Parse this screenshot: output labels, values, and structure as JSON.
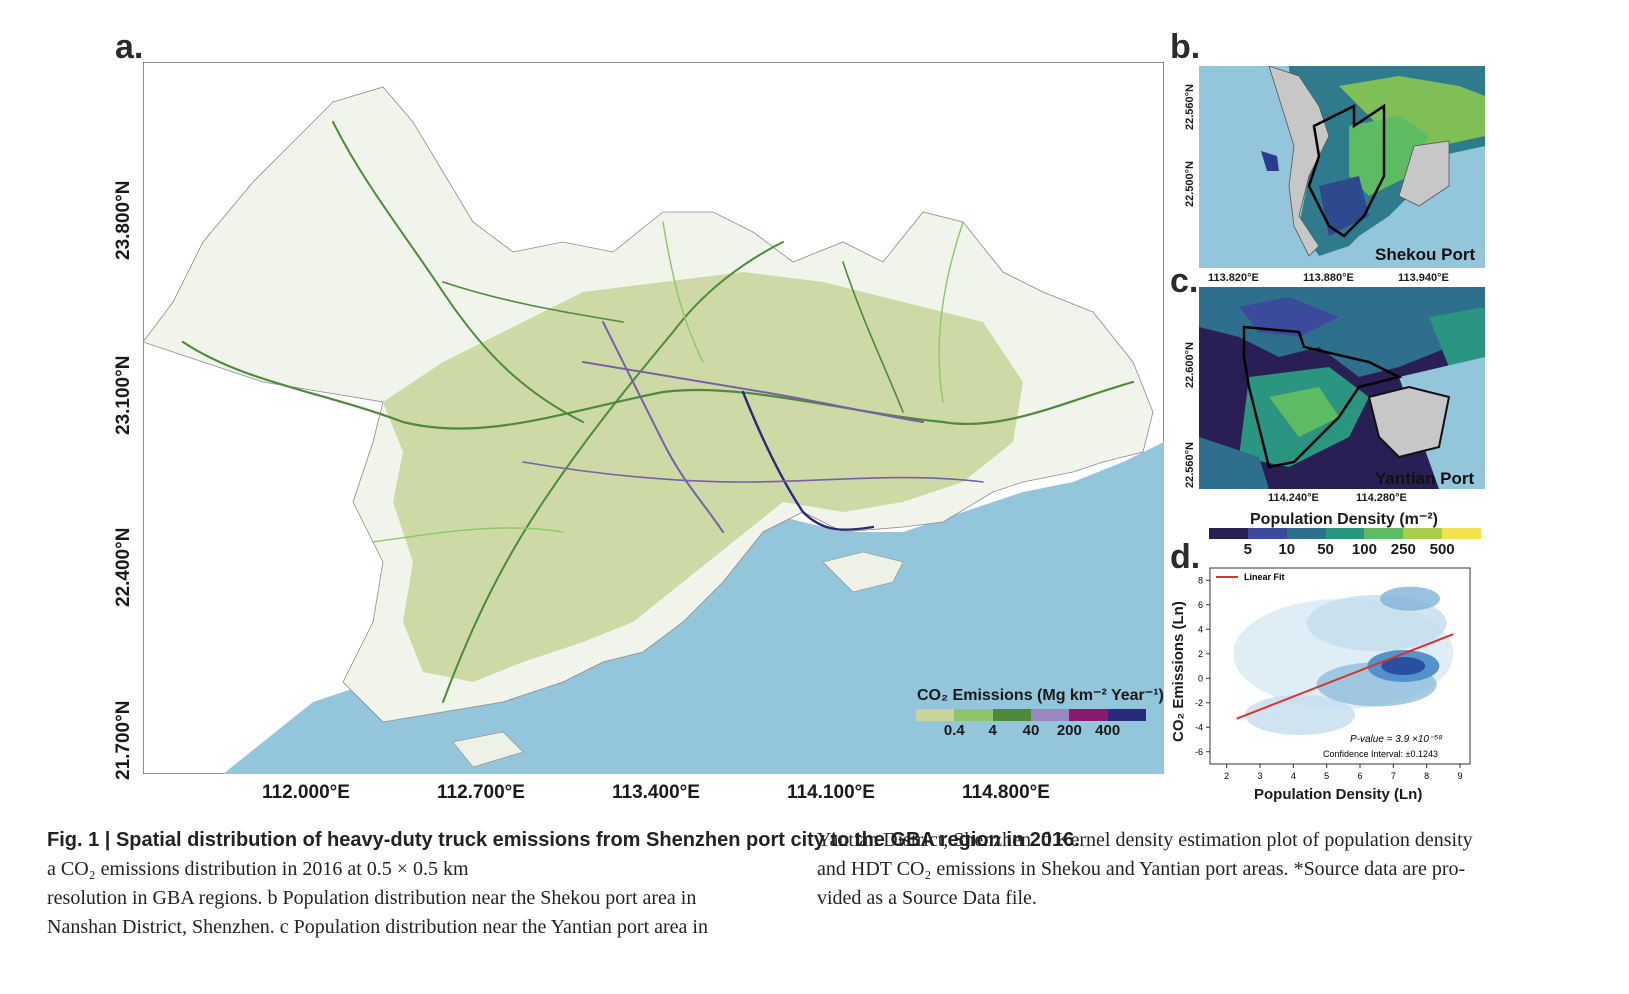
{
  "panels": {
    "a": {
      "letter": "a.",
      "x_ticks": [
        "112.000°E",
        "112.700°E",
        "113.400°E",
        "114.100°E",
        "114.800°E"
      ],
      "y_ticks": [
        "23.800°N",
        "23.100°N",
        "22.400°N",
        "21.700°N"
      ],
      "legend": {
        "title": "CO₂ Emissions (Mg km⁻² Year⁻¹)",
        "colors": [
          "#c8d49a",
          "#8fc46a",
          "#4f8a3a",
          "#9a86c0",
          "#8a1a6e",
          "#2a2a7a"
        ],
        "ticks": [
          "0.4",
          "4",
          "40",
          "200",
          "400"
        ]
      }
    },
    "b": {
      "letter": "b.",
      "name": "Shekou Port",
      "x_ticks": [
        "113.820°E",
        "113.880°E",
        "113.940°E"
      ],
      "y_ticks": [
        "22.560°N",
        "22.500°N"
      ]
    },
    "c": {
      "letter": "c.",
      "name": "Yantian Port",
      "x_ticks": [
        "114.240°E",
        "114.280°E"
      ],
      "y_ticks": [
        "22.600°N",
        "22.560°N"
      ]
    },
    "pop_legend": {
      "title": "Population Density (m⁻²)",
      "colors": [
        "#2a1f55",
        "#3b4a9a",
        "#2e6f8e",
        "#2a9580",
        "#5dbb63",
        "#a9cf4a",
        "#f2e24a"
      ],
      "ticks": [
        "5",
        "10",
        "50",
        "100",
        "250",
        "500"
      ]
    },
    "d": {
      "letter": "d."
    }
  },
  "chart_data": {
    "type": "scatter",
    "legend": [
      "Linear Fit"
    ],
    "xlabel": "Population Density (Ln)",
    "ylabel": "CO₂ Emissions (Ln)",
    "xlim": [
      1.5,
      9.3
    ],
    "ylim": [
      -7,
      9
    ],
    "x_ticks": [
      "2",
      "3",
      "4",
      "5",
      "6",
      "7",
      "8",
      "9"
    ],
    "y_ticks": [
      "8",
      "6",
      "4",
      "2",
      "0",
      "-2",
      "-4",
      "-6"
    ],
    "fit_line": {
      "x": [
        2.3,
        8.8
      ],
      "y": [
        -3.3,
        3.6
      ],
      "color": "#d9342b"
    },
    "density_peak": {
      "x": 7.3,
      "y": 1.0
    },
    "annotations": [
      "P-value = 3.9 ×10⁻⁵⁸",
      "Confidence Interval: ±0.1243"
    ]
  },
  "caption": {
    "fig_label": "Fig. 1 | ",
    "title": "Spatial distribution of heavy-duty truck emissions from Shenzhen port city to the GBA region in 2016.",
    "col1_rest": [
      " a CO₂ emissions distribution in 2016 at 0.5 × 0.5 km",
      "resolution in GBA regions. b Population distribution near the Shekou port area in",
      "Nanshan District, Shenzhen. c Population distribution near the Yantian port area in"
    ],
    "col2": [
      "Yantian District, Shenzhen. d Kernel density estimation plot of population density",
      "and HDT CO₂ emissions in Shekou and Yantian port areas. *Source data are pro-",
      "vided as a Source Data file."
    ]
  }
}
